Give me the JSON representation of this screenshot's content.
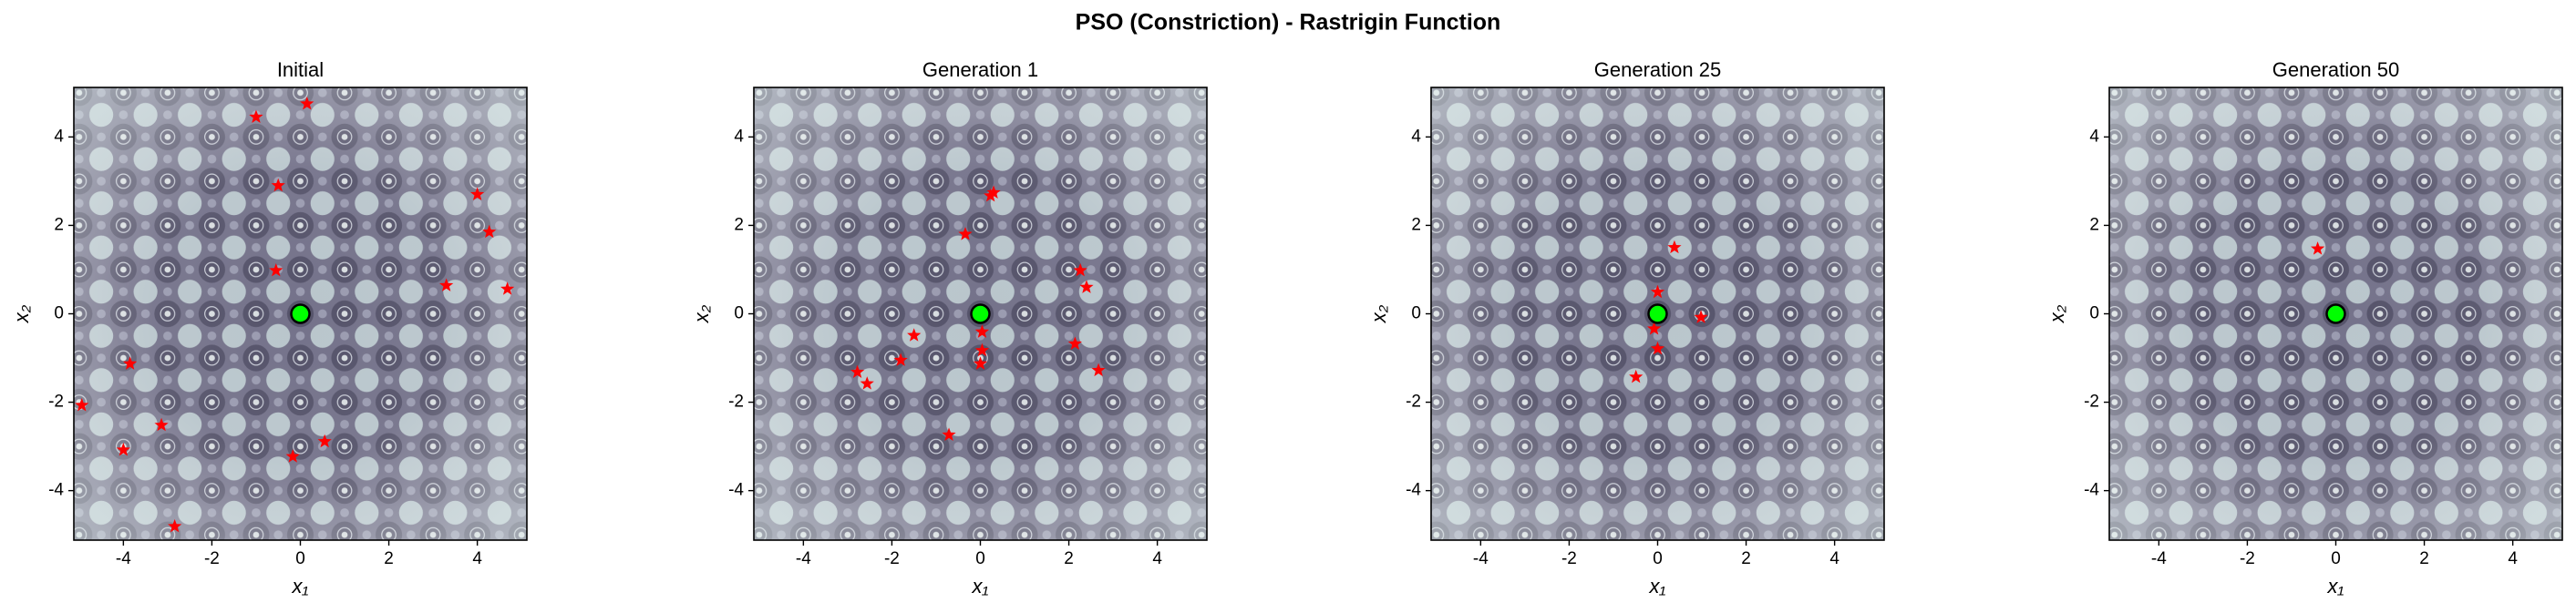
{
  "title": "PSO (Constriction) - Rastrigin Function",
  "chart_data": [
    {
      "type": "scatter",
      "title": "Initial",
      "xlabel": "x₁",
      "ylabel": "x₂",
      "xlim": [
        -5.12,
        5.12
      ],
      "ylim": [
        -5.12,
        5.12
      ],
      "xticks": [
        -4,
        -2,
        0,
        2,
        4
      ],
      "yticks": [
        -4,
        -2,
        0,
        2,
        4
      ],
      "series": [
        {
          "marker": "star",
          "color": "#ff0000",
          "x": [
            0.15,
            -1.0,
            -0.5,
            4.0,
            4.27,
            -0.55,
            3.3,
            4.68,
            -3.85,
            -4.94,
            -3.14,
            -4.0,
            0.55,
            -0.17,
            -2.84
          ],
          "y": [
            4.75,
            4.45,
            2.9,
            2.7,
            1.85,
            0.98,
            0.64,
            0.56,
            -1.13,
            -2.07,
            -2.52,
            -3.08,
            -2.89,
            -3.23,
            -4.81
          ]
        },
        {
          "marker": "circle",
          "color": "#00ff00",
          "x": [
            0
          ],
          "y": [
            0
          ]
        }
      ]
    },
    {
      "type": "scatter",
      "title": "Generation 1",
      "xlabel": "x₁",
      "ylabel": "x₂",
      "xlim": [
        -5.12,
        5.12
      ],
      "ylim": [
        -5.12,
        5.12
      ],
      "xticks": [
        -4,
        -2,
        0,
        2,
        4
      ],
      "yticks": [
        -4,
        -2,
        0,
        2,
        4
      ],
      "series": [
        {
          "marker": "star",
          "color": "#ff0000",
          "x": [
            0.23,
            0.3,
            -0.34,
            2.26,
            2.4,
            -1.5,
            -1.8,
            0.04,
            0.04,
            0.0,
            -2.78,
            -2.56,
            2.14,
            2.67,
            -0.71
          ],
          "y": [
            2.67,
            2.74,
            1.8,
            0.98,
            0.6,
            -0.49,
            -1.05,
            -0.41,
            -0.83,
            -1.13,
            -1.32,
            -1.58,
            -0.68,
            -1.28,
            -2.74
          ]
        },
        {
          "marker": "circle",
          "color": "#00ff00",
          "x": [
            0
          ],
          "y": [
            0
          ]
        }
      ]
    },
    {
      "type": "scatter",
      "title": "Generation 25",
      "xlabel": "x₁",
      "ylabel": "x₂",
      "xlim": [
        -5.12,
        5.12
      ],
      "ylim": [
        -5.12,
        5.12
      ],
      "xticks": [
        -4,
        -2,
        0,
        2,
        4
      ],
      "yticks": [
        -4,
        -2,
        0,
        2,
        4
      ],
      "series": [
        {
          "marker": "star",
          "color": "#ff0000",
          "x": [
            0.38,
            0.0,
            -0.08,
            0.0,
            0.98,
            -0.49
          ],
          "y": [
            1.5,
            0.49,
            -0.34,
            -0.79,
            -0.08,
            -1.43
          ]
        },
        {
          "marker": "circle",
          "color": "#00ff00",
          "x": [
            0
          ],
          "y": [
            0
          ]
        }
      ]
    },
    {
      "type": "scatter",
      "title": "Generation 50",
      "xlabel": "x₁",
      "ylabel": "x₂",
      "xlim": [
        -5.12,
        5.12
      ],
      "ylim": [
        -5.12,
        5.12
      ],
      "xticks": [
        -4,
        -2,
        0,
        2,
        4
      ],
      "yticks": [
        -4,
        -2,
        0,
        2,
        4
      ],
      "series": [
        {
          "marker": "star",
          "color": "#ff0000",
          "x": [
            -0.41
          ],
          "y": [
            1.47
          ]
        },
        {
          "marker": "circle",
          "color": "#00ff00",
          "x": [
            0
          ],
          "y": [
            0
          ]
        }
      ]
    }
  ]
}
